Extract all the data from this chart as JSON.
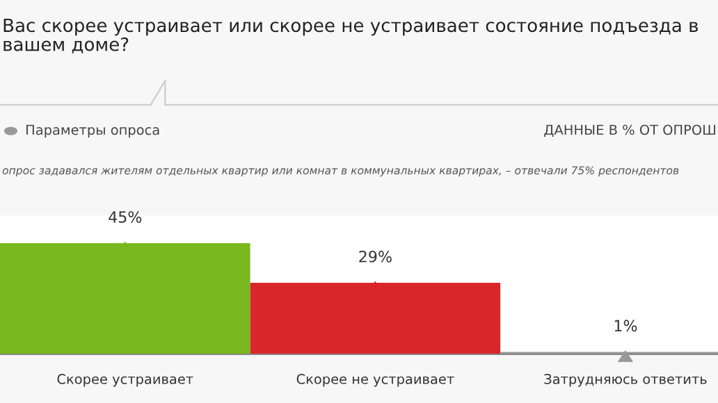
{
  "chart_data": {
    "type": "bar",
    "title": "Вас скорее устраивает или скорее не устраивает состояние подъезда в\nвашем доме?",
    "annotations": [
      "Параметры опроса",
      "ДАННЫЕ В % ОТ ОПРОШ",
      "опрос задавался жителям отдельных квартир или комнат в коммунальных квартирах, – отвечали 75% респондентов"
    ],
    "categories": [
      "Скорее устраивает",
      "Скорее не устраивает",
      "Затрудняюсь ответить"
    ],
    "values": [
      45,
      29,
      1
    ],
    "colors": [
      "#78b71e",
      "#d9262a",
      "#999999"
    ],
    "value_labels": [
      "45%",
      "29%",
      "1%"
    ]
  }
}
